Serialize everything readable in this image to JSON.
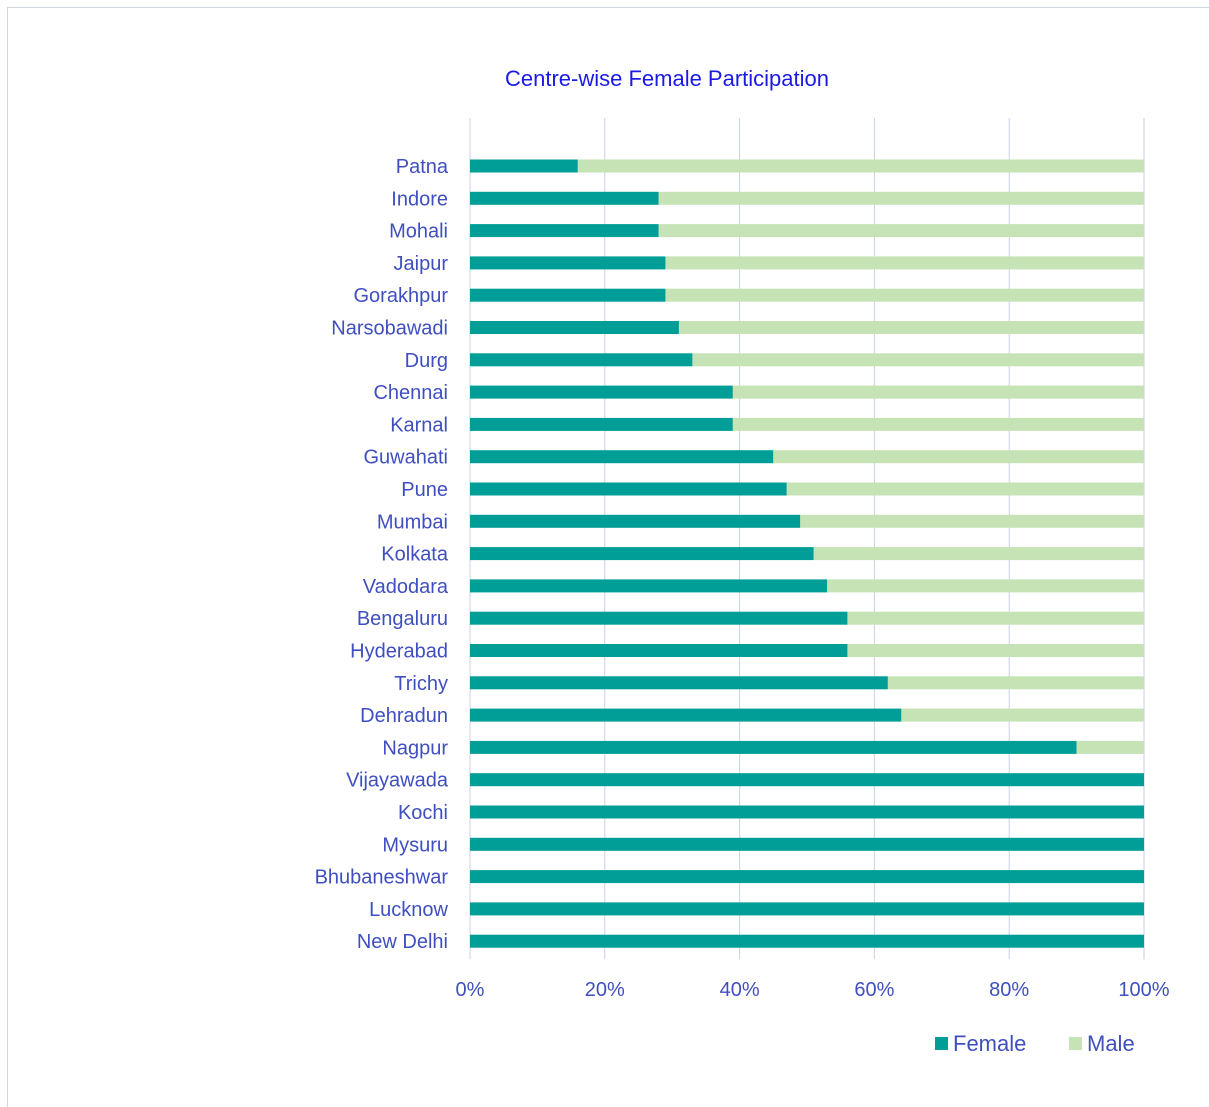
{
  "chart_data": {
    "type": "bar",
    "orientation": "horizontal",
    "stacked": "percent",
    "title": "Centre-wise Female Participation",
    "xlabel": "",
    "ylabel": "",
    "xlim": [
      0,
      100
    ],
    "x_ticks": [
      "0%",
      "20%",
      "40%",
      "60%",
      "80%",
      "100%"
    ],
    "grid": true,
    "legend_position": "bottom-right",
    "categories": [
      "Patna",
      "Indore",
      "Mohali",
      "Jaipur",
      "Gorakhpur",
      "Narsobawadi",
      "Durg",
      "Chennai",
      "Karnal",
      "Guwahati",
      "Pune",
      "Mumbai",
      "Kolkata",
      "Vadodara",
      "Bengaluru",
      "Hyderabad",
      "Trichy",
      "Dehradun",
      "Nagpur",
      "Vijayawada",
      "Kochi",
      "Mysuru",
      "Bhubaneshwar",
      "Lucknow",
      "New Delhi"
    ],
    "series": [
      {
        "name": "Female",
        "color": "#009e96",
        "values": [
          16,
          28,
          28,
          29,
          29,
          31,
          33,
          39,
          39,
          45,
          47,
          49,
          51,
          53,
          56,
          56,
          62,
          64,
          90,
          100,
          100,
          100,
          100,
          100,
          100
        ]
      },
      {
        "name": "Male",
        "color": "#c5e3b5",
        "values": [
          84,
          72,
          72,
          71,
          71,
          69,
          67,
          61,
          61,
          55,
          53,
          51,
          49,
          47,
          44,
          44,
          38,
          36,
          10,
          0,
          0,
          0,
          0,
          0,
          0
        ]
      }
    ],
    "colors": {
      "title": "#1a1ae6",
      "labels": "#3f4fbf",
      "grid": "#c9d1e6"
    }
  }
}
